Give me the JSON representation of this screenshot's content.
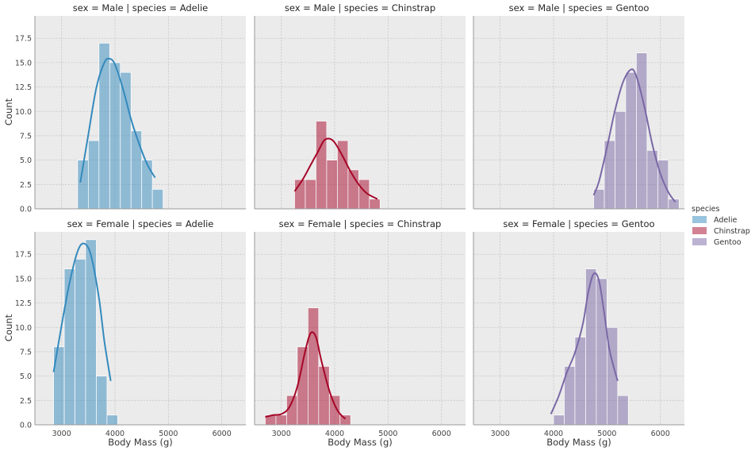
{
  "colors": {
    "Adelie": "#348abd",
    "Chinstrap": "#a60628",
    "Gentoo": "#7a68a6"
  },
  "chart_data": {
    "type": "histogram-grid",
    "bin_width": 200,
    "x_label": "Body Mass (g)",
    "y_label": "Count",
    "xlim": [
      2500,
      6450
    ],
    "ylim": [
      0,
      19.8
    ],
    "x_ticks": [
      "3000",
      "4000",
      "5000",
      "6000"
    ],
    "y_ticks": [
      "0.0",
      "2.5",
      "5.0",
      "7.5",
      "10.0",
      "12.5",
      "15.0",
      "17.5"
    ],
    "grid": true,
    "legend": {
      "title": "species",
      "placement": "right",
      "entries": [
        "Adelie",
        "Chinstrap",
        "Gentoo"
      ]
    },
    "panels": [
      {
        "title": "sex = Male | species = Adelie",
        "species": "Adelie",
        "bin_start": 3300,
        "counts": [
          5,
          7,
          17,
          15,
          14,
          8,
          5,
          2
        ],
        "kde": [
          [
            3350,
            2.7
          ],
          [
            3500,
            7.6
          ],
          [
            3650,
            12.4
          ],
          [
            3800,
            15.0
          ],
          [
            3900,
            15.4
          ],
          [
            4000,
            14.8
          ],
          [
            4150,
            12.3
          ],
          [
            4300,
            9.2
          ],
          [
            4450,
            6.7
          ],
          [
            4600,
            4.6
          ],
          [
            4750,
            3.2
          ]
        ]
      },
      {
        "title": "sex = Male | species = Chinstrap",
        "species": "Chinstrap",
        "bin_start": 3250,
        "counts": [
          3,
          3,
          9,
          5,
          7,
          4,
          3,
          1
        ],
        "kde": [
          [
            3250,
            1.8
          ],
          [
            3400,
            3.0
          ],
          [
            3550,
            4.5
          ],
          [
            3700,
            6.0
          ],
          [
            3800,
            7.0
          ],
          [
            3900,
            7.2
          ],
          [
            4000,
            6.8
          ],
          [
            4150,
            5.4
          ],
          [
            4300,
            3.8
          ],
          [
            4450,
            2.5
          ],
          [
            4600,
            1.6
          ],
          [
            4800,
            1.0
          ]
        ]
      },
      {
        "title": "sex = Male | species = Gentoo",
        "species": "Gentoo",
        "bin_start": 4750,
        "counts": [
          2,
          7,
          10,
          14,
          16,
          6,
          5,
          1
        ],
        "kde": [
          [
            4750,
            1.4
          ],
          [
            4850,
            2.8
          ],
          [
            5000,
            6.3
          ],
          [
            5150,
            10.1
          ],
          [
            5300,
            13.0
          ],
          [
            5450,
            14.3
          ],
          [
            5550,
            13.6
          ],
          [
            5700,
            10.5
          ],
          [
            5850,
            6.6
          ],
          [
            6000,
            3.6
          ],
          [
            6150,
            1.7
          ],
          [
            6280,
            0.7
          ]
        ]
      },
      {
        "title": "sex = Female | species = Adelie",
        "species": "Adelie",
        "bin_start": 2850,
        "counts": [
          8,
          16,
          17,
          19,
          5,
          1
        ],
        "kde": [
          [
            2850,
            5.4
          ],
          [
            3000,
            10.2
          ],
          [
            3150,
            14.6
          ],
          [
            3300,
            17.8
          ],
          [
            3420,
            18.6
          ],
          [
            3550,
            17.4
          ],
          [
            3700,
            13.0
          ],
          [
            3800,
            8.6
          ],
          [
            3920,
            4.5
          ]
        ]
      },
      {
        "title": "sex = Female | species = Chinstrap",
        "species": "Chinstrap",
        "bin_start": 2700,
        "counts": [
          1,
          1,
          3,
          8,
          12,
          6,
          3,
          1
        ],
        "kde": [
          [
            2700,
            0.8
          ],
          [
            2850,
            1.0
          ],
          [
            3000,
            1.1
          ],
          [
            3150,
            1.8
          ],
          [
            3300,
            3.9
          ],
          [
            3450,
            7.6
          ],
          [
            3550,
            9.4
          ],
          [
            3650,
            9.0
          ],
          [
            3750,
            6.6
          ],
          [
            3900,
            3.5
          ],
          [
            4050,
            1.5
          ],
          [
            4200,
            0.6
          ]
        ]
      },
      {
        "title": "sex = Female | species = Gentoo",
        "species": "Gentoo",
        "bin_start": 4000,
        "counts": [
          1,
          6,
          9,
          16,
          15,
          10,
          3
        ],
        "kde": [
          [
            3950,
            1.1
          ],
          [
            4100,
            3.0
          ],
          [
            4250,
            5.4
          ],
          [
            4400,
            7.4
          ],
          [
            4550,
            10.4
          ],
          [
            4650,
            13.6
          ],
          [
            4750,
            15.5
          ],
          [
            4850,
            14.8
          ],
          [
            4950,
            11.4
          ],
          [
            5050,
            7.6
          ],
          [
            5200,
            4.5
          ]
        ]
      }
    ]
  }
}
